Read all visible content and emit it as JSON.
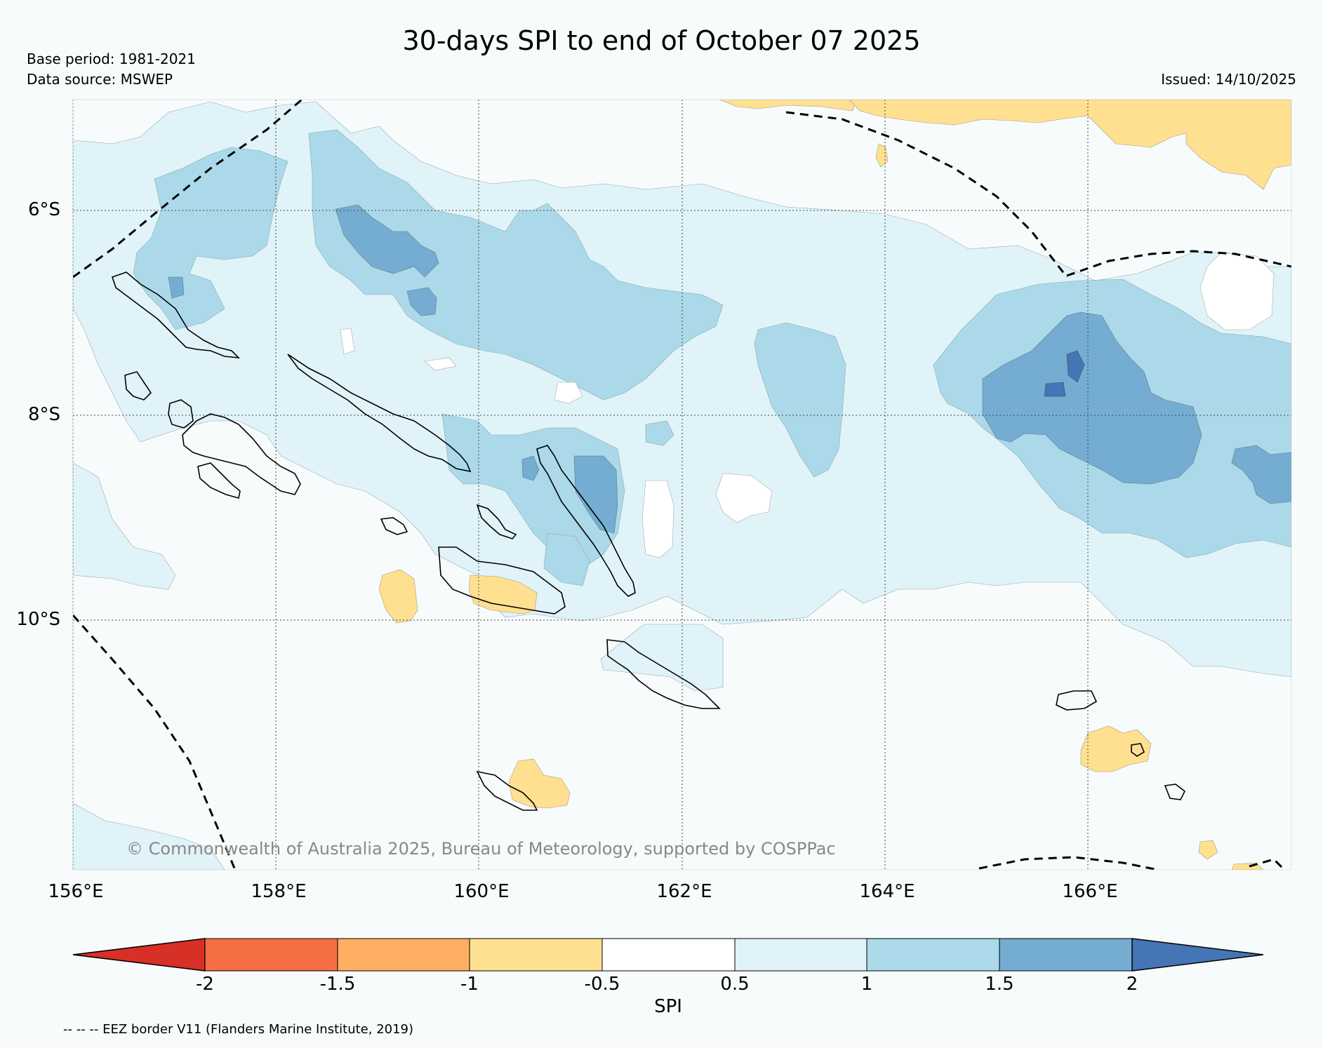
{
  "title": "30-days SPI to end of October 07 2025",
  "base_period": "Base period: 1981-2021",
  "data_source": "Data source: MSWEP",
  "issued": "Issued: 14/10/2025",
  "copyright": "© Commonwealth of Australia 2025, Bureau of Meteorology, supported by COSPPac",
  "lat_labels": [
    "6°S",
    "8°S",
    "10°S"
  ],
  "lon_labels": [
    "156°E",
    "158°E",
    "160°E",
    "162°E",
    "164°E",
    "166°E"
  ],
  "colorbar": {
    "title": "SPI",
    "ticks": [
      "-2",
      "-1.5",
      "-1",
      "-0.5",
      "0.5",
      "1",
      "1.5",
      "2"
    ],
    "colors": {
      "below_-2": "#d73027",
      "-2_to_-1.5": "#f46d43",
      "-1.5_to_-1": "#fdae61",
      "-1_to_-0.5": "#fee090",
      "-0.5_to_0.5": "#ffffff",
      "0.5_to_1": "#e0f3f8",
      "1_to_1.5": "#abd9e9",
      "1.5_to_2": "#74add1",
      "above_2": "#4575b4"
    }
  },
  "legend_note": "-- -- -- EEZ border V11 (Flanders Marine Institute, 2019)"
}
